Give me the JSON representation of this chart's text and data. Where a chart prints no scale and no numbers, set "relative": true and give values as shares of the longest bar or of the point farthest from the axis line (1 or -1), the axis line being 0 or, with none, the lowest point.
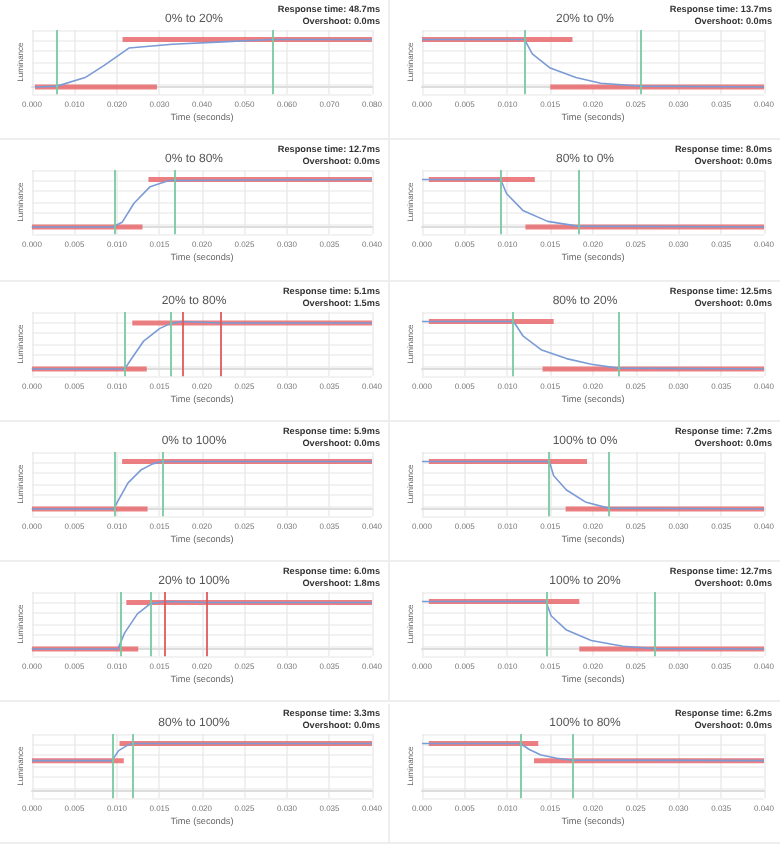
{
  "chart_data": [
    {
      "type": "line",
      "title": "0% to 20%",
      "xlabel": "Time (seconds)",
      "ylabel": "Luminance",
      "relative": true,
      "tick_labels": "x",
      "grid": true,
      "marker": "none",
      "xlim": [
        0,
        0.08
      ],
      "xticks": [
        {
          "value": 0,
          "label": "0.000"
        },
        {
          "value": 0.01,
          "label": "0.010"
        },
        {
          "value": 0.02,
          "label": "0.020"
        },
        {
          "value": 0.03,
          "label": "0.030"
        },
        {
          "value": 0.04,
          "label": "0.040"
        },
        {
          "value": 0.05,
          "label": "0.050"
        },
        {
          "value": 0.06,
          "label": "0.060"
        },
        {
          "value": 0.07,
          "label": "0.070"
        },
        {
          "value": 0.08,
          "label": "0.080"
        }
      ],
      "annotations": [
        "Response time: 48.7ms",
        "Overshoot: 0.0ms"
      ],
      "series": [
        {
          "color": "#7b9bd6",
          "x": [
            0.0007,
            0.0059,
            0.0125,
            0.0169,
            0.0228,
            0.033,
            0.0448,
            0.0565,
            0.08
          ],
          "values": [
            0,
            0.02,
            0.2,
            0.45,
            0.82,
            0.9,
            0.95,
            1,
            1
          ]
        },
        {
          "color": "#e8686b",
          "x": [
            0.0007,
            0.0294
          ],
          "values": [
            0,
            0
          ]
        },
        {
          "color": "#e8686b",
          "x": [
            0.0213,
            0.08
          ],
          "values": [
            1,
            1
          ]
        }
      ],
      "ref_lines": [
        {
          "axis": "x",
          "value": 0.0059,
          "color": "#79c9a0"
        },
        {
          "axis": "x",
          "value": 0.0565,
          "color": "#79c9a0"
        }
      ]
    },
    {
      "type": "line",
      "title": "20% to 0%",
      "xlabel": "Time (seconds)",
      "ylabel": "Luminance",
      "relative": true,
      "tick_labels": "x",
      "grid": true,
      "marker": "none",
      "xlim": [
        0,
        0.04
      ],
      "xticks": [
        {
          "value": 0,
          "label": "0.000"
        },
        {
          "value": 0.005,
          "label": "0.005"
        },
        {
          "value": 0.01,
          "label": "0.010"
        },
        {
          "value": 0.015,
          "label": "0.015"
        },
        {
          "value": 0.02,
          "label": "0.020"
        },
        {
          "value": 0.025,
          "label": "0.025"
        },
        {
          "value": 0.03,
          "label": "0.030"
        },
        {
          "value": 0.035,
          "label": "0.035"
        },
        {
          "value": 0.04,
          "label": "0.040"
        }
      ],
      "annotations": [
        "Response time: 13.7ms",
        "Overshoot: 0.0ms"
      ],
      "series": [
        {
          "color": "#7b9bd6",
          "x": [
            0,
            0.012,
            0.0129,
            0.015,
            0.018,
            0.0209,
            0.0255,
            0.04
          ],
          "values": [
            1,
            1,
            0.7,
            0.4,
            0.2,
            0.08,
            0.02,
            0
          ]
        },
        {
          "color": "#e8686b",
          "x": [
            0,
            0.0176
          ],
          "values": [
            1,
            1
          ]
        },
        {
          "color": "#e8686b",
          "x": [
            0.015,
            0.04
          ],
          "values": [
            0,
            0
          ]
        }
      ],
      "ref_lines": [
        {
          "axis": "x",
          "value": 0.012,
          "color": "#79c9a0"
        },
        {
          "axis": "x",
          "value": 0.0255,
          "color": "#79c9a0"
        }
      ]
    },
    {
      "type": "line",
      "title": "0% to 80%",
      "xlabel": "Time (seconds)",
      "ylabel": "Luminance",
      "relative": true,
      "tick_labels": "x",
      "grid": true,
      "marker": "none",
      "xlim": [
        0,
        0.04
      ],
      "xticks": [
        {
          "value": 0,
          "label": "0.000"
        },
        {
          "value": 0.005,
          "label": "0.005"
        },
        {
          "value": 0.01,
          "label": "0.010"
        },
        {
          "value": 0.015,
          "label": "0.015"
        },
        {
          "value": 0.02,
          "label": "0.020"
        },
        {
          "value": 0.025,
          "label": "0.025"
        },
        {
          "value": 0.03,
          "label": "0.030"
        },
        {
          "value": 0.035,
          "label": "0.035"
        },
        {
          "value": 0.04,
          "label": "0.040"
        }
      ],
      "annotations": [
        "Response time: 12.7ms",
        "Overshoot: 0.0ms"
      ],
      "series": [
        {
          "color": "#7b9bd6",
          "x": [
            0,
            0.0095,
            0.0106,
            0.012,
            0.0139,
            0.0161,
            0.04
          ],
          "values": [
            0,
            0,
            0.1,
            0.5,
            0.85,
            0.98,
            1
          ]
        },
        {
          "color": "#e8686b",
          "x": [
            0,
            0.013
          ],
          "values": [
            0,
            0
          ]
        },
        {
          "color": "#e8686b",
          "x": [
            0.0137,
            0.04
          ],
          "values": [
            1,
            1
          ]
        }
      ],
      "ref_lines": [
        {
          "axis": "x",
          "value": 0.0098,
          "color": "#79c9a0"
        },
        {
          "axis": "x",
          "value": 0.0168,
          "color": "#79c9a0"
        }
      ]
    },
    {
      "type": "line",
      "title": "80% to 0%",
      "xlabel": "Time (seconds)",
      "ylabel": "Luminance",
      "relative": true,
      "tick_labels": "x",
      "grid": true,
      "marker": "none",
      "xlim": [
        0,
        0.04
      ],
      "xticks": [
        {
          "value": 0,
          "label": "0.000"
        },
        {
          "value": 0.005,
          "label": "0.005"
        },
        {
          "value": 0.01,
          "label": "0.010"
        },
        {
          "value": 0.015,
          "label": "0.015"
        },
        {
          "value": 0.02,
          "label": "0.020"
        },
        {
          "value": 0.025,
          "label": "0.025"
        },
        {
          "value": 0.03,
          "label": "0.030"
        },
        {
          "value": 0.035,
          "label": "0.035"
        },
        {
          "value": 0.04,
          "label": "0.040"
        }
      ],
      "annotations": [
        "Response time: 8.0ms",
        "Overshoot: 0.0ms"
      ],
      "series": [
        {
          "color": "#7b9bd6",
          "x": [
            0,
            0.0092,
            0.0099,
            0.0118,
            0.0147,
            0.0182,
            0.04
          ],
          "values": [
            1,
            1,
            0.7,
            0.35,
            0.12,
            0.02,
            0
          ]
        },
        {
          "color": "#e8686b",
          "x": [
            0.0008,
            0.0132
          ],
          "values": [
            1,
            1
          ]
        },
        {
          "color": "#e8686b",
          "x": [
            0.0121,
            0.04
          ],
          "values": [
            0,
            0
          ]
        }
      ],
      "ref_lines": [
        {
          "axis": "x",
          "value": 0.0092,
          "color": "#79c9a0"
        },
        {
          "axis": "x",
          "value": 0.0182,
          "color": "#79c9a0"
        }
      ]
    },
    {
      "type": "line",
      "title": "20% to 80%",
      "xlabel": "Time (seconds)",
      "ylabel": "Luminance",
      "relative": true,
      "tick_labels": "x",
      "grid": true,
      "marker": "none",
      "xlim": [
        0,
        0.04
      ],
      "xticks": [
        {
          "value": 0,
          "label": "0.000"
        },
        {
          "value": 0.005,
          "label": "0.005"
        },
        {
          "value": 0.01,
          "label": "0.010"
        },
        {
          "value": 0.015,
          "label": "0.015"
        },
        {
          "value": 0.02,
          "label": "0.020"
        },
        {
          "value": 0.025,
          "label": "0.025"
        },
        {
          "value": 0.03,
          "label": "0.030"
        },
        {
          "value": 0.035,
          "label": "0.035"
        },
        {
          "value": 0.04,
          "label": "0.040"
        }
      ],
      "annotations": [
        "Response time: 5.1ms",
        "Overshoot: 1.5ms"
      ],
      "series": [
        {
          "color": "#7b9bd6",
          "x": [
            0,
            0.0109,
            0.0116,
            0.0131,
            0.015,
            0.0162,
            0.0176,
            0.0221,
            0.04
          ],
          "values": [
            0,
            0,
            0.19,
            0.58,
            0.85,
            0.95,
            1,
            0.97,
            0.97
          ]
        },
        {
          "color": "#e8686b",
          "x": [
            0,
            0.0135
          ],
          "values": [
            0,
            0
          ]
        },
        {
          "color": "#e8686b",
          "x": [
            0.0118,
            0.04
          ],
          "values": [
            0.97,
            0.97
          ]
        }
      ],
      "ref_lines": [
        {
          "axis": "x",
          "value": 0.011,
          "color": "#79c9a0"
        },
        {
          "axis": "x",
          "value": 0.0162,
          "color": "#79c9a0"
        },
        {
          "axis": "x",
          "value": 0.0176,
          "color": "#e0595c"
        },
        {
          "axis": "x",
          "value": 0.0221,
          "color": "#e0595c"
        }
      ]
    },
    {
      "type": "line",
      "title": "80% to 20%",
      "xlabel": "Time (seconds)",
      "ylabel": "Luminance",
      "relative": true,
      "tick_labels": "x",
      "grid": true,
      "marker": "none",
      "xlim": [
        0,
        0.04
      ],
      "xticks": [
        {
          "value": 0,
          "label": "0.000"
        },
        {
          "value": 0.005,
          "label": "0.005"
        },
        {
          "value": 0.01,
          "label": "0.010"
        },
        {
          "value": 0.015,
          "label": "0.015"
        },
        {
          "value": 0.02,
          "label": "0.020"
        },
        {
          "value": 0.025,
          "label": "0.025"
        },
        {
          "value": 0.03,
          "label": "0.030"
        },
        {
          "value": 0.035,
          "label": "0.035"
        },
        {
          "value": 0.04,
          "label": "0.040"
        }
      ],
      "annotations": [
        "Response time: 12.5ms",
        "Overshoot: 0.0ms"
      ],
      "series": [
        {
          "color": "#7b9bd6",
          "x": [
            0,
            0.0107,
            0.0118,
            0.014,
            0.0169,
            0.0198,
            0.0229,
            0.04
          ],
          "values": [
            1,
            1,
            0.7,
            0.4,
            0.22,
            0.1,
            0.02,
            0
          ]
        },
        {
          "color": "#e8686b",
          "x": [
            0.0008,
            0.0154
          ],
          "values": [
            1,
            1
          ]
        },
        {
          "color": "#e8686b",
          "x": [
            0.0141,
            0.04
          ],
          "values": [
            0,
            0
          ]
        }
      ],
      "ref_lines": [
        {
          "axis": "x",
          "value": 0.0107,
          "color": "#79c9a0"
        },
        {
          "axis": "x",
          "value": 0.0229,
          "color": "#79c9a0"
        }
      ]
    },
    {
      "type": "line",
      "title": "0% to 100%",
      "xlabel": "Time (seconds)",
      "ylabel": "Luminance",
      "relative": true,
      "tick_labels": "x",
      "grid": true,
      "marker": "none",
      "xlim": [
        0,
        0.04
      ],
      "xticks": [
        {
          "value": 0,
          "label": "0.000"
        },
        {
          "value": 0.005,
          "label": "0.005"
        },
        {
          "value": 0.01,
          "label": "0.010"
        },
        {
          "value": 0.015,
          "label": "0.015"
        },
        {
          "value": 0.02,
          "label": "0.020"
        },
        {
          "value": 0.025,
          "label": "0.025"
        },
        {
          "value": 0.03,
          "label": "0.030"
        },
        {
          "value": 0.035,
          "label": "0.035"
        },
        {
          "value": 0.04,
          "label": "0.040"
        }
      ],
      "annotations": [
        "Response time: 5.9ms",
        "Overshoot: 0.0ms"
      ],
      "series": [
        {
          "color": "#7b9bd6",
          "x": [
            0,
            0.0096,
            0.0102,
            0.0113,
            0.0128,
            0.0142,
            0.0153,
            0.04
          ],
          "values": [
            0,
            0,
            0.2,
            0.55,
            0.82,
            0.95,
            1,
            1
          ]
        },
        {
          "color": "#e8686b",
          "x": [
            0,
            0.0136
          ],
          "values": [
            0,
            0
          ]
        },
        {
          "color": "#e8686b",
          "x": [
            0.0106,
            0.04
          ],
          "values": [
            1,
            1
          ]
        }
      ],
      "ref_lines": [
        {
          "axis": "x",
          "value": 0.0098,
          "color": "#79c9a0"
        },
        {
          "axis": "x",
          "value": 0.0153,
          "color": "#79c9a0"
        }
      ]
    },
    {
      "type": "line",
      "title": "100% to 0%",
      "xlabel": "Time (seconds)",
      "ylabel": "Luminance",
      "relative": true,
      "tick_labels": "x",
      "grid": true,
      "marker": "none",
      "xlim": [
        0,
        0.04
      ],
      "xticks": [
        {
          "value": 0,
          "label": "0.000"
        },
        {
          "value": 0.005,
          "label": "0.005"
        },
        {
          "value": 0.01,
          "label": "0.010"
        },
        {
          "value": 0.015,
          "label": "0.015"
        },
        {
          "value": 0.02,
          "label": "0.020"
        },
        {
          "value": 0.025,
          "label": "0.025"
        },
        {
          "value": 0.03,
          "label": "0.030"
        },
        {
          "value": 0.035,
          "label": "0.035"
        },
        {
          "value": 0.04,
          "label": "0.040"
        }
      ],
      "annotations": [
        "Response time: 7.2ms",
        "Overshoot: 0.0ms"
      ],
      "series": [
        {
          "color": "#7b9bd6",
          "x": [
            0,
            0.0149,
            0.0154,
            0.0169,
            0.0191,
            0.0218,
            0.04
          ],
          "values": [
            1,
            1,
            0.7,
            0.4,
            0.15,
            0.02,
            0
          ]
        },
        {
          "color": "#e8686b",
          "x": [
            0.0008,
            0.0193
          ],
          "values": [
            1,
            1
          ]
        },
        {
          "color": "#e8686b",
          "x": [
            0.0168,
            0.04
          ],
          "values": [
            0,
            0
          ]
        }
      ],
      "ref_lines": [
        {
          "axis": "x",
          "value": 0.0149,
          "color": "#79c9a0"
        },
        {
          "axis": "x",
          "value": 0.0218,
          "color": "#79c9a0"
        }
      ]
    },
    {
      "type": "line",
      "title": "20% to 100%",
      "xlabel": "Time (seconds)",
      "ylabel": "Luminance",
      "relative": true,
      "tick_labels": "x",
      "grid": true,
      "marker": "none",
      "xlim": [
        0,
        0.04
      ],
      "xticks": [
        {
          "value": 0,
          "label": "0.000"
        },
        {
          "value": 0.005,
          "label": "0.005"
        },
        {
          "value": 0.01,
          "label": "0.010"
        },
        {
          "value": 0.015,
          "label": "0.015"
        },
        {
          "value": 0.02,
          "label": "0.020"
        },
        {
          "value": 0.025,
          "label": "0.025"
        },
        {
          "value": 0.03,
          "label": "0.030"
        },
        {
          "value": 0.035,
          "label": "0.035"
        },
        {
          "value": 0.04,
          "label": "0.040"
        }
      ],
      "annotations": [
        "Response time: 6.0ms",
        "Overshoot: 1.8ms"
      ],
      "series": [
        {
          "color": "#7b9bd6",
          "x": [
            0,
            0.0101,
            0.0109,
            0.0124,
            0.0139,
            0.0157,
            0.0205,
            0.04
          ],
          "values": [
            0,
            0,
            0.34,
            0.74,
            0.95,
            1,
            0.98,
            0.98
          ]
        },
        {
          "color": "#e8686b",
          "x": [
            0,
            0.0125
          ],
          "values": [
            0,
            0
          ]
        },
        {
          "color": "#e8686b",
          "x": [
            0.0111,
            0.04
          ],
          "values": [
            0.98,
            0.98
          ]
        }
      ],
      "ref_lines": [
        {
          "axis": "x",
          "value": 0.0105,
          "color": "#79c9a0"
        },
        {
          "axis": "x",
          "value": 0.0139,
          "color": "#79c9a0"
        },
        {
          "axis": "x",
          "value": 0.0157,
          "color": "#e0595c"
        },
        {
          "axis": "x",
          "value": 0.0205,
          "color": "#e0595c"
        }
      ]
    },
    {
      "type": "line",
      "title": "100% to 20%",
      "xlabel": "Time (seconds)",
      "ylabel": "Luminance",
      "relative": true,
      "tick_labels": "x",
      "grid": true,
      "marker": "none",
      "xlim": [
        0,
        0.04
      ],
      "xticks": [
        {
          "value": 0,
          "label": "0.000"
        },
        {
          "value": 0.005,
          "label": "0.005"
        },
        {
          "value": 0.01,
          "label": "0.010"
        },
        {
          "value": 0.015,
          "label": "0.015"
        },
        {
          "value": 0.02,
          "label": "0.020"
        },
        {
          "value": 0.025,
          "label": "0.025"
        },
        {
          "value": 0.03,
          "label": "0.030"
        },
        {
          "value": 0.035,
          "label": "0.035"
        },
        {
          "value": 0.04,
          "label": "0.040"
        }
      ],
      "annotations": [
        "Response time: 12.7ms",
        "Overshoot: 0.0ms"
      ],
      "series": [
        {
          "color": "#7b9bd6",
          "x": [
            0,
            0.0145,
            0.0151,
            0.0169,
            0.0198,
            0.0235,
            0.0272,
            0.04
          ],
          "values": [
            1,
            1,
            0.7,
            0.4,
            0.18,
            0.06,
            0.01,
            0
          ]
        },
        {
          "color": "#e8686b",
          "x": [
            0.0008,
            0.0184
          ],
          "values": [
            1,
            1
          ]
        },
        {
          "color": "#e8686b",
          "x": [
            0.0184,
            0.04
          ],
          "values": [
            0,
            0
          ]
        }
      ],
      "ref_lines": [
        {
          "axis": "x",
          "value": 0.0145,
          "color": "#79c9a0"
        },
        {
          "axis": "x",
          "value": 0.0272,
          "color": "#79c9a0"
        }
      ]
    },
    {
      "type": "line",
      "title": "80% to 100%",
      "xlabel": "Time (seconds)",
      "ylabel": "Luminance",
      "relative": true,
      "tick_labels": "x",
      "grid": true,
      "marker": "none",
      "xlim": [
        0,
        0.04
      ],
      "xticks": [
        {
          "value": 0,
          "label": "0.000"
        },
        {
          "value": 0.005,
          "label": "0.005"
        },
        {
          "value": 0.01,
          "label": "0.010"
        },
        {
          "value": 0.015,
          "label": "0.015"
        },
        {
          "value": 0.02,
          "label": "0.020"
        },
        {
          "value": 0.025,
          "label": "0.025"
        },
        {
          "value": 0.03,
          "label": "0.030"
        },
        {
          "value": 0.035,
          "label": "0.035"
        },
        {
          "value": 0.04,
          "label": "0.040"
        }
      ],
      "annotations": [
        "Response time: 3.3ms",
        "Overshoot: 0.0ms"
      ],
      "series": [
        {
          "color": "#7b9bd6",
          "x": [
            0,
            0.0094,
            0.0102,
            0.0113,
            0.0118,
            0.04
          ],
          "values": [
            0.64,
            0.64,
            0.85,
            0.97,
            1,
            1
          ]
        },
        {
          "color": "#e8686b",
          "x": [
            0,
            0.0108
          ],
          "values": [
            0.64,
            0.64
          ]
        },
        {
          "color": "#e8686b",
          "x": [
            0.0103,
            0.04
          ],
          "values": [
            1,
            1
          ]
        }
      ],
      "ref_lines": [
        {
          "axis": "x",
          "value": 0.0094,
          "color": "#79c9a0"
        },
        {
          "axis": "x",
          "value": 0.0118,
          "color": "#79c9a0"
        }
      ]
    },
    {
      "type": "line",
      "title": "100% to 80%",
      "xlabel": "Time (seconds)",
      "ylabel": "Luminance",
      "relative": true,
      "tick_labels": "x",
      "grid": true,
      "marker": "none",
      "xlim": [
        0,
        0.04
      ],
      "xticks": [
        {
          "value": 0,
          "label": "0.000"
        },
        {
          "value": 0.005,
          "label": "0.005"
        },
        {
          "value": 0.01,
          "label": "0.010"
        },
        {
          "value": 0.015,
          "label": "0.015"
        },
        {
          "value": 0.02,
          "label": "0.020"
        },
        {
          "value": 0.025,
          "label": "0.025"
        },
        {
          "value": 0.03,
          "label": "0.030"
        },
        {
          "value": 0.035,
          "label": "0.035"
        },
        {
          "value": 0.04,
          "label": "0.040"
        }
      ],
      "annotations": [
        "Response time: 6.2ms",
        "Overshoot: 0.0ms"
      ],
      "series": [
        {
          "color": "#7b9bd6",
          "x": [
            0,
            0.0115,
            0.0125,
            0.0139,
            0.0158,
            0.0175,
            0.04
          ],
          "values": [
            1,
            1,
            0.88,
            0.76,
            0.69,
            0.65,
            0.64
          ]
        },
        {
          "color": "#e8686b",
          "x": [
            0.0008,
            0.0136
          ],
          "values": [
            1,
            1
          ]
        },
        {
          "color": "#e8686b",
          "x": [
            0.0131,
            0.04
          ],
          "values": [
            0.64,
            0.64
          ]
        }
      ],
      "ref_lines": [
        {
          "axis": "x",
          "value": 0.0115,
          "color": "#79c9a0"
        },
        {
          "axis": "x",
          "value": 0.0175,
          "color": "#79c9a0"
        }
      ]
    }
  ]
}
